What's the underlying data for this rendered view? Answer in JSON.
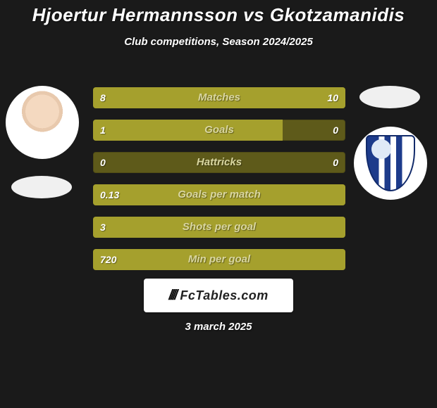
{
  "colors": {
    "background": "#1a1a1a",
    "text": "#ffffff",
    "bar_fill": "#a5a02d",
    "bar_empty": "#5e5a1a",
    "label": "#d9d6a0",
    "brand_bg": "#ffffff",
    "subtitle": "#ffffff"
  },
  "title": {
    "text": "Hjoertur Hermannsson vs Gkotzamanidis",
    "fontsize": 26,
    "color": "#ffffff"
  },
  "subtitle": {
    "text": "Club competitions, Season 2024/2025",
    "fontsize": 15
  },
  "brand": {
    "text": "FcTables.com"
  },
  "date": {
    "text": "3 march 2025",
    "fontsize": 15
  },
  "stats": {
    "label_fontsize": 15,
    "value_fontsize": 14,
    "rows": [
      {
        "label": "Matches",
        "left_value": "8",
        "right_value": "10",
        "left_pct": 40,
        "right_pct": 60
      },
      {
        "label": "Goals",
        "left_value": "1",
        "right_value": "0",
        "left_pct": 75,
        "right_pct": 0
      },
      {
        "label": "Hattricks",
        "left_value": "0",
        "right_value": "0",
        "left_pct": 0,
        "right_pct": 0
      },
      {
        "label": "Goals per match",
        "left_value": "0.13",
        "right_value": "",
        "left_pct": 100,
        "right_pct": 0
      },
      {
        "label": "Shots per goal",
        "left_value": "3",
        "right_value": "",
        "left_pct": 100,
        "right_pct": 0
      },
      {
        "label": "Min per goal",
        "left_value": "720",
        "right_value": "",
        "left_pct": 100,
        "right_pct": 0
      }
    ]
  }
}
